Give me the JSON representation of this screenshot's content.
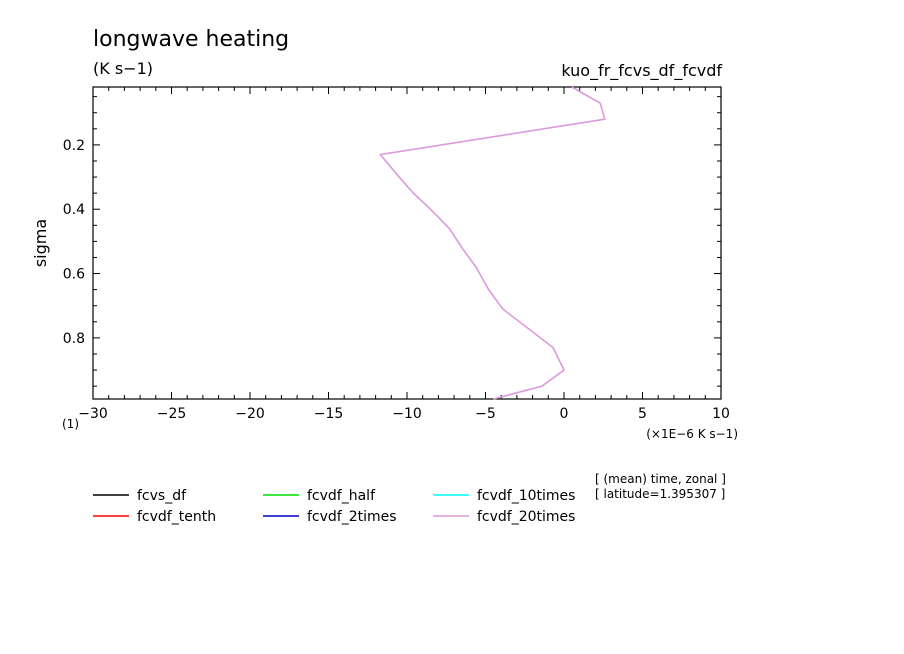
{
  "chart_data": {
    "type": "line",
    "title": "longwave heating",
    "subtitle": "(K s−1)",
    "experiment": "kuo_fr_fcvs_df_fcvdf",
    "ylabel": "sigma",
    "x_units": "(×1E−6 K s−1)",
    "y_axis_index_label": "(1)",
    "xlim": [
      -30,
      10
    ],
    "ylim": [
      0.02,
      0.99
    ],
    "y_inverted": true,
    "x_major_ticks": [
      -30,
      -25,
      -20,
      -15,
      -10,
      -5,
      0,
      5,
      10
    ],
    "x_tick_labels": [
      "−30",
      "−25",
      "−20",
      "−15",
      "−10",
      "−5",
      "0",
      "5",
      "10"
    ],
    "x_minor_step": 1,
    "y_major_ticks": [
      0.2,
      0.4,
      0.6,
      0.8
    ],
    "y_tick_labels": [
      "0.2",
      "0.4",
      "0.6",
      "0.8"
    ],
    "y_minor_step": 0.05,
    "grid": false,
    "info_lines": [
      "[ (mean) time, zonal ]",
      "[ latitude=1.395307 ]"
    ],
    "legend_placement": "bottom",
    "series": [
      {
        "name": "fcvs_df",
        "color": "#000000",
        "x": [],
        "y": []
      },
      {
        "name": "fcvdf_tenth",
        "color": "#ff0000",
        "x": [],
        "y": []
      },
      {
        "name": "fcvdf_half",
        "color": "#00dd00",
        "x": [],
        "y": []
      },
      {
        "name": "fcvdf_2times",
        "color": "#0000cc",
        "x": [],
        "y": []
      },
      {
        "name": "fcvdf_10times",
        "color": "#00ffff",
        "x": [],
        "y": []
      },
      {
        "name": "fcvdf_20times",
        "color": "#dd99dd",
        "x": [
          0.5,
          2.3,
          2.6,
          -11.7,
          -10.5,
          -9.6,
          -8.5,
          -7.3,
          -6.5,
          -5.6,
          -4.8,
          -3.9,
          -2.3,
          -0.7,
          0.0,
          -1.4,
          -4.5
        ],
        "y": [
          0.02,
          0.07,
          0.12,
          0.23,
          0.3,
          0.35,
          0.4,
          0.46,
          0.52,
          0.58,
          0.65,
          0.71,
          0.77,
          0.83,
          0.9,
          0.95,
          0.99
        ]
      }
    ]
  }
}
